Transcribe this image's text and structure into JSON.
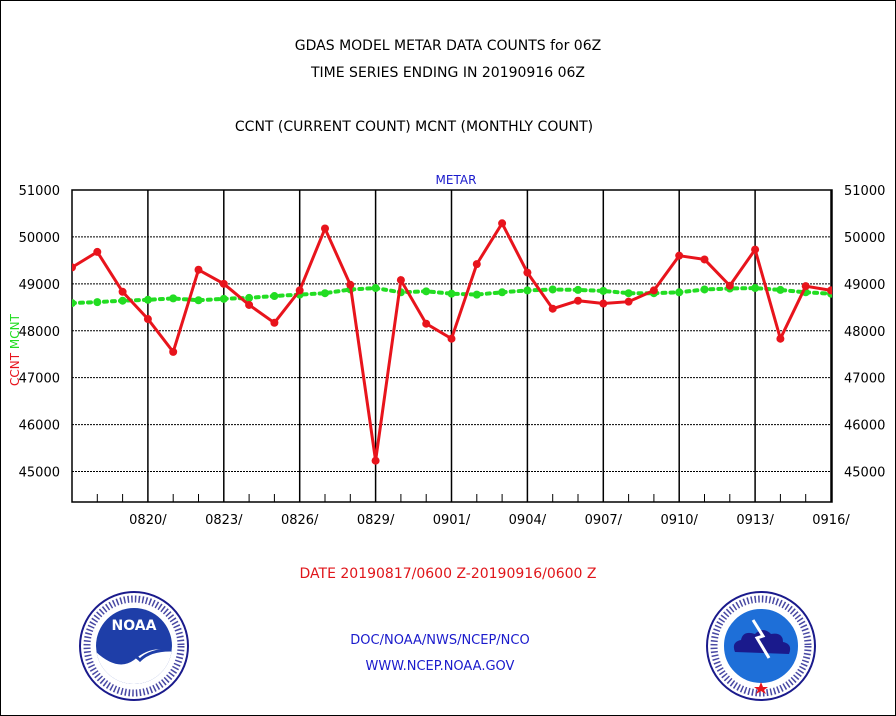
{
  "header": {
    "title_line1": "GDAS MODEL METAR DATA COUNTS for 06Z",
    "title_line2": "TIME SERIES ENDING IN 20190916 06Z",
    "subtitle": "CCNT (CURRENT COUNT) MCNT (MONTHLY COUNT)"
  },
  "footer": {
    "date_range": "DATE 20190817/0600 Z-20190916/0600 Z",
    "org_path": "DOC/NOAA/NWS/NCEP/NCO",
    "website": "WWW.NCEP.NOAA.GOV",
    "logo_left_text": "NOAA",
    "logo_left_ring_text": "NATIONAL OCEANIC AND ATMOSPHERIC ADMINISTRATION · U.S. DEPARTMENT OF COMMERCE",
    "logo_right_ring_text": "NATIONAL WEATHER SERVICE"
  },
  "colors": {
    "ccnt": "#e8141c",
    "mcnt": "#22dd22",
    "title_metar": "#1a1acc"
  },
  "chart_data": {
    "type": "line",
    "title": "METAR",
    "ylabel_series": [
      "CCNT",
      "MCNT"
    ],
    "ylim": [
      44350,
      51000
    ],
    "yticks": [
      45000,
      46000,
      47000,
      48000,
      49000,
      50000,
      51000
    ],
    "ytick_labels": [
      "45000",
      "46000",
      "47000",
      "48000",
      "49000",
      "50000",
      "51000"
    ],
    "x_start": "2019-08-17",
    "x_end": "2019-09-16",
    "xtick_labels": [
      "0820/",
      "0823/",
      "0826/",
      "0829/",
      "0901/",
      "0904/",
      "0907/",
      "0910/",
      "0913/",
      "0916/"
    ],
    "grid": true,
    "series": [
      {
        "name": "CCNT",
        "color": "#e8141c",
        "style": "solid",
        "dates": [
          "0817",
          "0818",
          "0819",
          "0820",
          "0821",
          "0822",
          "0823",
          "0824",
          "0825",
          "0826",
          "0827",
          "0828",
          "0829",
          "0830",
          "0831",
          "0901",
          "0902",
          "0903",
          "0904",
          "0905",
          "0906",
          "0907",
          "0908",
          "0909",
          "0910",
          "0911",
          "0912",
          "0913",
          "0914",
          "0915",
          "0916"
        ],
        "values": [
          49350,
          49680,
          48830,
          48250,
          47550,
          49300,
          49000,
          48550,
          48170,
          48860,
          50180,
          48980,
          45230,
          49080,
          48150,
          47830,
          49420,
          50290,
          49240,
          48470,
          48640,
          48580,
          48620,
          48860,
          49600,
          49520,
          48960,
          49730,
          47830,
          48950,
          48860
        ]
      },
      {
        "name": "MCNT",
        "color": "#22dd22",
        "style": "dotted",
        "dates": [
          "0817",
          "0818",
          "0819",
          "0820",
          "0821",
          "0822",
          "0823",
          "0824",
          "0825",
          "0826",
          "0827",
          "0828",
          "0829",
          "0830",
          "0831",
          "0901",
          "0902",
          "0903",
          "0904",
          "0905",
          "0906",
          "0907",
          "0908",
          "0909",
          "0910",
          "0911",
          "0912",
          "0913",
          "0914",
          "0915",
          "0916"
        ],
        "values": [
          48590,
          48610,
          48640,
          48660,
          48690,
          48650,
          48680,
          48700,
          48740,
          48770,
          48800,
          48880,
          48910,
          48820,
          48840,
          48790,
          48770,
          48820,
          48860,
          48880,
          48870,
          48850,
          48800,
          48800,
          48820,
          48880,
          48900,
          48910,
          48870,
          48820,
          48790
        ]
      }
    ]
  }
}
